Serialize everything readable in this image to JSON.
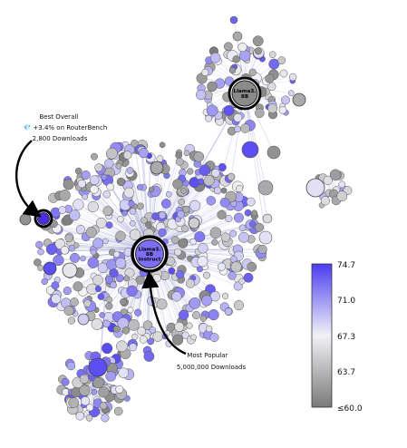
{
  "graph": {
    "clusters": [
      {
        "id": "top",
        "center_label_lines": [
          "Llama3.",
          "8B"
        ],
        "node_count": 110
      },
      {
        "id": "main",
        "center_label_lines": [
          "Llama3.",
          "8B",
          "Instruct"
        ],
        "node_count": 520
      },
      {
        "id": "bottom",
        "center_label_lines": [],
        "node_count": 90
      },
      {
        "id": "right",
        "center_label_lines": [],
        "node_count": 20
      }
    ]
  },
  "annotations": {
    "best_overall": {
      "lines": [
        "Best Overall",
        "💎 +3.4% on RouterBench",
        "2,800 Downloads"
      ]
    },
    "most_popular": {
      "lines": [
        "Most Popular",
        "5,000,000 Downloads"
      ]
    }
  },
  "colorbar": {
    "ticks": [
      "74.7",
      "71.0",
      "67.3",
      "63.7",
      "≤60.0"
    ],
    "range": [
      60.0,
      74.7
    ],
    "colors": {
      "high": "#4a3df0",
      "mid": "#f2f2f6",
      "low": "#7a7a7a"
    }
  }
}
